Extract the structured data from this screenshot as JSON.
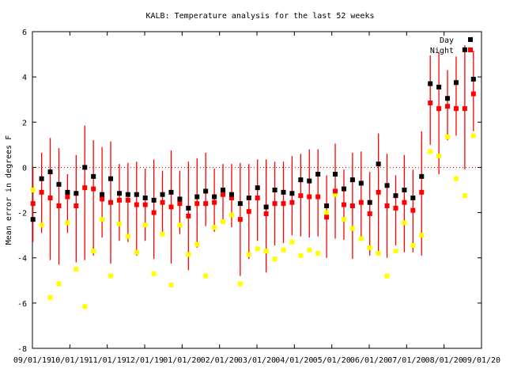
{
  "chart_data": {
    "type": "scatter",
    "title": "KALB: Temperature analysis for the last 52 weeks",
    "ylabel": "Mean error in degrees F",
    "xlabel": "",
    "ylim": [
      -8,
      6
    ],
    "yticks": [
      6,
      4,
      2,
      0,
      -2,
      -4,
      -6,
      -8
    ],
    "xtick_labels": [
      "09/01/19",
      "10/01/19",
      "11/01/19",
      "12/01/19",
      "01/01/20",
      "02/01/20",
      "03/01/20",
      "04/01/20",
      "05/01/20",
      "06/01/20",
      "07/01/20",
      "08/01/20",
      "09/01/20"
    ],
    "zero_line": true,
    "legend_position": "top-right",
    "series": [
      {
        "name": "Day",
        "color": "#000000",
        "values": [
          -2.3,
          -0.5,
          -0.2,
          -0.75,
          -1.1,
          -1.15,
          0.0,
          -0.4,
          -1.2,
          -0.5,
          -1.15,
          -1.2,
          -1.2,
          -1.35,
          -1.45,
          -1.2,
          -1.1,
          -1.4,
          -1.8,
          -1.3,
          -1.05,
          -1.3,
          -1.0,
          -1.2,
          -1.6,
          -1.35,
          -0.9,
          -1.75,
          -1.0,
          -1.1,
          -1.15,
          -0.55,
          -0.6,
          -0.3,
          -1.7,
          -0.3,
          -0.95,
          -0.55,
          -0.7,
          -1.55,
          0.15,
          -0.8,
          -1.25,
          -1.0,
          -1.35,
          -0.4,
          3.7,
          3.55,
          3.05,
          3.75,
          5.2,
          3.9
        ]
      },
      {
        "name": "Night",
        "color": "#ff0000",
        "values": [
          -1.6,
          -1.1,
          -1.35,
          -1.7,
          -1.3,
          -1.7,
          -0.9,
          -0.95,
          -1.4,
          -1.55,
          -1.45,
          -1.45,
          -1.65,
          -1.65,
          -2.0,
          -1.55,
          -1.75,
          -1.6,
          -2.15,
          -1.6,
          -1.6,
          -1.55,
          -1.2,
          -1.35,
          -2.3,
          -1.95,
          -1.35,
          -2.05,
          -1.6,
          -1.6,
          -1.55,
          -1.25,
          -1.3,
          -1.3,
          -2.2,
          -1.05,
          -1.65,
          -1.7,
          -1.55,
          -2.05,
          -1.1,
          -1.7,
          -1.8,
          -1.55,
          -1.9,
          -1.1,
          2.85,
          2.6,
          2.7,
          2.6,
          2.6,
          3.25
        ]
      },
      {
        "name": "",
        "color": "#ffff00",
        "values": [
          -1.0,
          -2.55,
          -5.75,
          -5.15,
          -2.45,
          -4.5,
          -6.15,
          -3.7,
          -2.3,
          -4.8,
          -2.5,
          -3.05,
          -3.75,
          -2.55,
          -4.7,
          -2.95,
          -5.2,
          -2.55,
          -3.85,
          -3.4,
          -4.8,
          -2.65,
          -2.4,
          -2.1,
          -5.15,
          -3.85,
          -3.6,
          -3.7,
          -4.05,
          -3.65,
          -3.3,
          -3.9,
          -3.65,
          -3.8,
          -2.0,
          -1.2,
          -2.3,
          -2.7,
          -3.15,
          -3.55,
          -3.8,
          -4.8,
          -3.7,
          -2.45,
          -3.45,
          -3.0,
          0.7,
          0.5,
          1.35,
          -0.5,
          -1.25,
          1.4
        ]
      },
      {
        "name": "",
        "color": "#ff0000",
        "ranges": [
          [
            -3.3,
            0.0
          ],
          [
            -2.9,
            0.65
          ],
          [
            -4.1,
            1.3
          ],
          [
            -4.3,
            0.85
          ],
          [
            -2.9,
            -0.3
          ],
          [
            -4.2,
            0.55
          ],
          [
            -4.1,
            1.85
          ],
          [
            -3.9,
            1.2
          ],
          [
            -3.1,
            0.9
          ],
          [
            -4.25,
            1.15
          ],
          [
            -3.25,
            0.15
          ],
          [
            -3.3,
            0.2
          ],
          [
            -3.9,
            0.25
          ],
          [
            -3.25,
            -0.05
          ],
          [
            -4.05,
            0.35
          ],
          [
            -2.95,
            -0.15
          ],
          [
            -4.25,
            0.75
          ],
          [
            -2.95,
            -0.15
          ],
          [
            -4.55,
            0.25
          ],
          [
            -3.55,
            0.4
          ],
          [
            -2.6,
            0.65
          ],
          [
            -2.85,
            -0.05
          ],
          [
            -2.35,
            0.15
          ],
          [
            -2.65,
            0.15
          ],
          [
            -4.8,
            0.2
          ],
          [
            -4.05,
            0.15
          ],
          [
            -3.25,
            0.35
          ],
          [
            -4.65,
            0.35
          ],
          [
            -3.45,
            0.25
          ],
          [
            -3.35,
            0.25
          ],
          [
            -3.0,
            0.5
          ],
          [
            -3.05,
            0.6
          ],
          [
            -3.1,
            0.8
          ],
          [
            -3.05,
            0.8
          ],
          [
            -4.0,
            -0.35
          ],
          [
            -3.15,
            1.05
          ],
          [
            -3.2,
            -0.1
          ],
          [
            -4.05,
            0.65
          ],
          [
            -3.2,
            0.7
          ],
          [
            -3.9,
            -0.2
          ],
          [
            -3.7,
            1.5
          ],
          [
            -4.0,
            0.6
          ],
          [
            -3.45,
            -0.35
          ],
          [
            -3.75,
            0.55
          ],
          [
            -3.75,
            -0.1
          ],
          [
            -3.9,
            1.6
          ],
          [
            1.0,
            4.95
          ],
          [
            -0.3,
            5.1
          ],
          [
            1.2,
            4.3
          ],
          [
            1.4,
            4.9
          ],
          [
            -0.1,
            5.4
          ],
          [
            1.6,
            5.15
          ]
        ]
      }
    ]
  }
}
